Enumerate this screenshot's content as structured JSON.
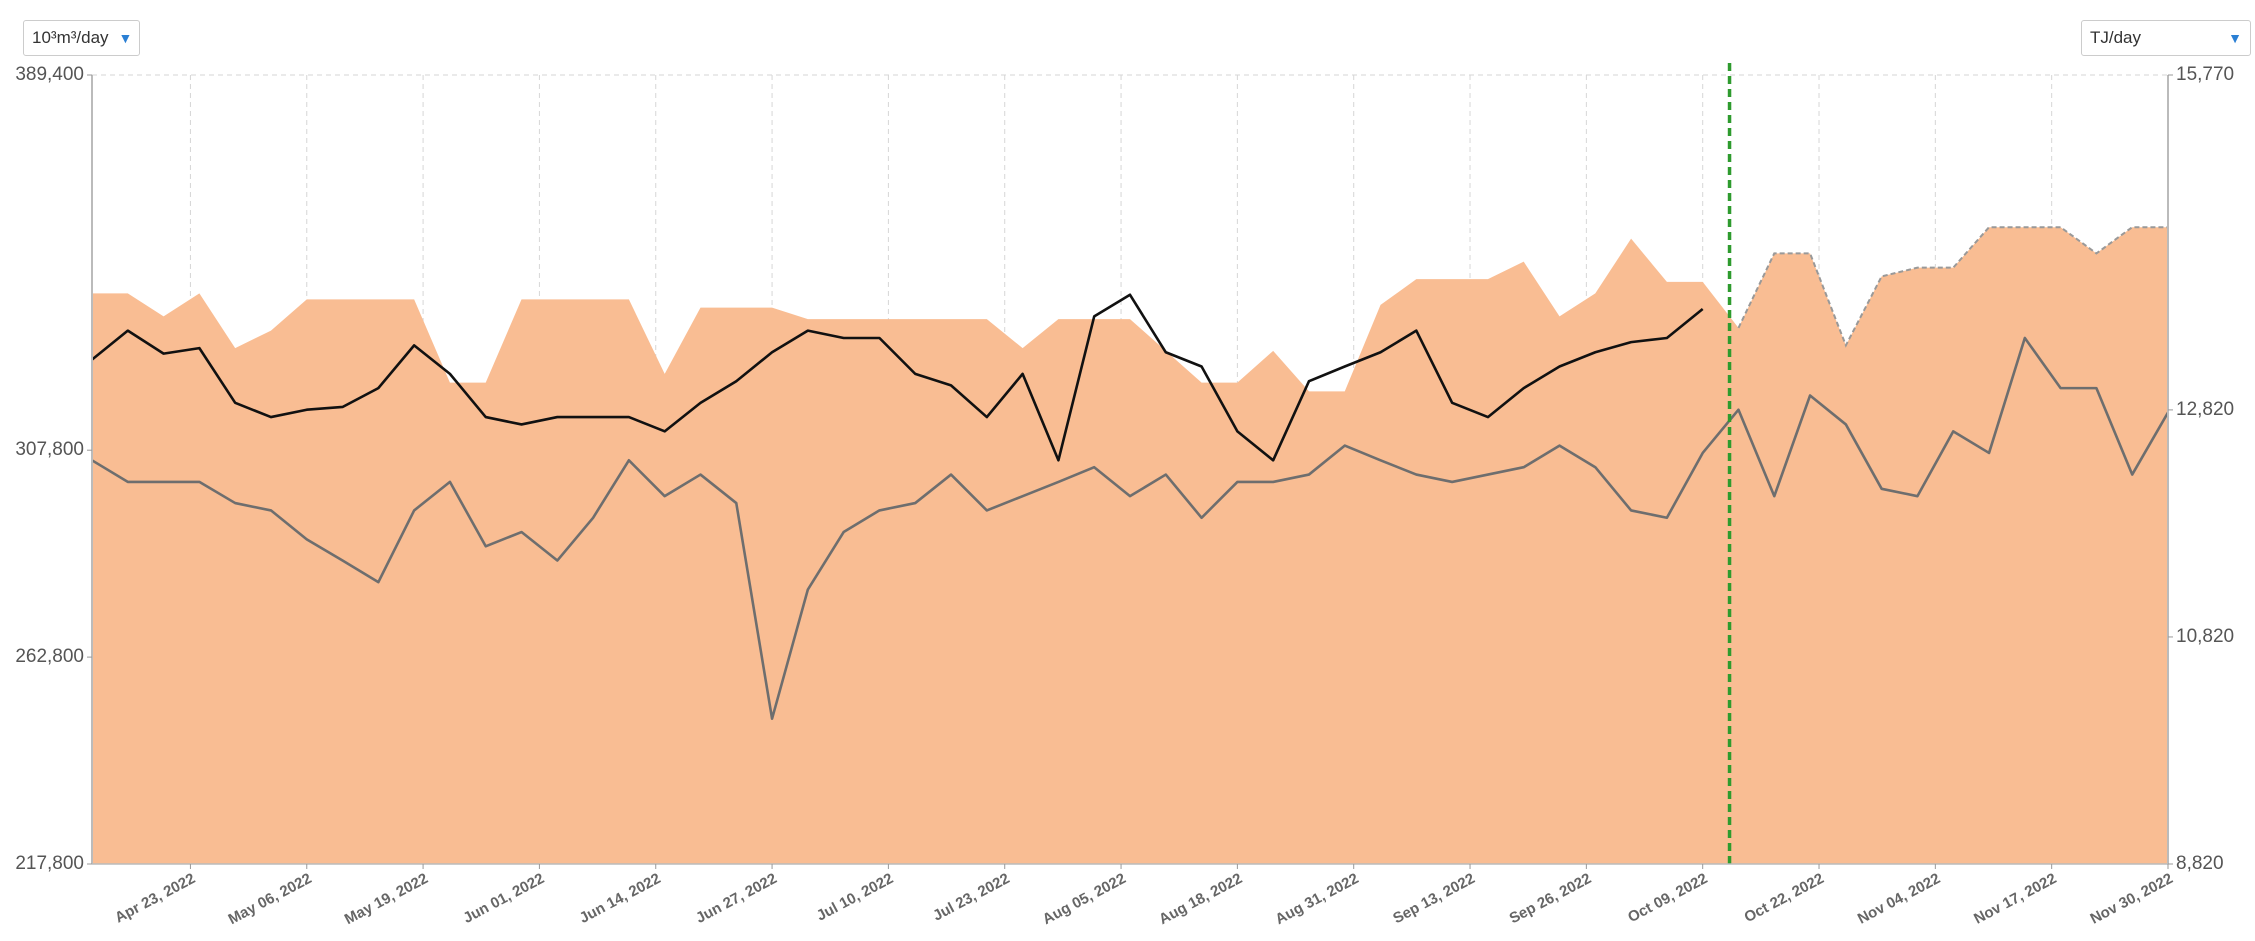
{
  "y_unit_selector": "10³m³/day",
  "y2_unit_selector": "TJ/day",
  "chart_data": {
    "type": "area-line",
    "x": [
      "2022-04-12",
      "2022-04-16",
      "2022-04-20",
      "2022-04-24",
      "2022-04-28",
      "2022-05-02",
      "2022-05-06",
      "2022-05-10",
      "2022-05-14",
      "2022-05-18",
      "2022-05-22",
      "2022-05-26",
      "2022-05-30",
      "2022-06-03",
      "2022-06-07",
      "2022-06-11",
      "2022-06-15",
      "2022-06-19",
      "2022-06-23",
      "2022-06-27",
      "2022-07-01",
      "2022-07-05",
      "2022-07-09",
      "2022-07-13",
      "2022-07-17",
      "2022-07-21",
      "2022-07-25",
      "2022-07-29",
      "2022-08-02",
      "2022-08-06",
      "2022-08-10",
      "2022-08-14",
      "2022-08-18",
      "2022-08-22",
      "2022-08-26",
      "2022-08-30",
      "2022-09-03",
      "2022-09-07",
      "2022-09-11",
      "2022-09-15",
      "2022-09-19",
      "2022-09-23",
      "2022-09-27",
      "2022-10-01",
      "2022-10-05",
      "2022-10-09",
      "2022-10-13",
      "2022-10-17",
      "2022-10-21",
      "2022-10-25",
      "2022-10-29",
      "2022-11-02",
      "2022-11-06",
      "2022-11-10",
      "2022-11-14",
      "2022-11-18",
      "2022-11-22",
      "2022-11-26",
      "2022-11-30"
    ],
    "series": [
      {
        "kind": "area",
        "color": "#f9bd93",
        "values": [
          341900,
          341900,
          336900,
          341900,
          330000,
          333800,
          340600,
          340600,
          340600,
          340600,
          322500,
          322500,
          340600,
          340600,
          340600,
          340600,
          324400,
          338800,
          338800,
          338800,
          336300,
          336300,
          336300,
          336300,
          336300,
          336300,
          330000,
          336300,
          336300,
          336300,
          329400,
          322500,
          322500,
          329400,
          320600,
          320600,
          339400,
          345000,
          345000,
          345000,
          348800,
          336900,
          341900,
          353800,
          344400,
          344400,
          334400,
          350600,
          350600,
          330600,
          345600,
          347500,
          347500,
          356300,
          356300,
          356300,
          350600,
          356300,
          356300
        ]
      },
      {
        "kind": "line",
        "color": "#111111",
        "values": [
          327500,
          333800,
          328800,
          330000,
          318100,
          315000,
          316600,
          317200,
          321300,
          330600,
          324400,
          315000,
          313400,
          315000,
          315000,
          315000,
          311900,
          318100,
          322800,
          329100,
          333800,
          332200,
          332200,
          324400,
          321900,
          315000,
          324400,
          305600,
          336900,
          341600,
          329100,
          326000,
          311900,
          305600,
          322800,
          326000,
          329100,
          333800,
          318100,
          315000,
          321300,
          326000,
          329100,
          331300,
          332200,
          338500,
          null,
          null,
          null,
          null,
          null,
          null,
          null,
          null,
          null,
          null,
          null,
          null,
          null
        ]
      },
      {
        "kind": "line",
        "color": "#6e6e6e",
        "values": [
          305600,
          300900,
          300900,
          300900,
          296300,
          294700,
          288400,
          283800,
          279100,
          294700,
          300900,
          286900,
          290000,
          283800,
          293100,
          305600,
          297800,
          302500,
          296300,
          249400,
          277500,
          290000,
          294700,
          296300,
          302500,
          294700,
          297800,
          300900,
          304100,
          297800,
          302500,
          293100,
          300900,
          300900,
          302500,
          308800,
          305600,
          302500,
          300900,
          302500,
          304100,
          308800,
          304100,
          294700,
          293100,
          307200,
          316600,
          297800,
          319700,
          313400,
          299400,
          297800,
          311900,
          307200,
          332200,
          321300,
          321300,
          302500,
          316000
        ]
      }
    ],
    "xlim": [
      "2022-04-12",
      "2022-11-30"
    ],
    "xticks": [
      {
        "value": "2022-04-23",
        "label": "Apr 23, 2022"
      },
      {
        "value": "2022-05-06",
        "label": "May 06, 2022"
      },
      {
        "value": "2022-05-19",
        "label": "May 19, 2022"
      },
      {
        "value": "2022-06-01",
        "label": "Jun 01, 2022"
      },
      {
        "value": "2022-06-14",
        "label": "Jun 14, 2022"
      },
      {
        "value": "2022-06-27",
        "label": "Jun 27, 2022"
      },
      {
        "value": "2022-07-10",
        "label": "Jul 10, 2022"
      },
      {
        "value": "2022-07-23",
        "label": "Jul 23, 2022"
      },
      {
        "value": "2022-08-05",
        "label": "Aug 05, 2022"
      },
      {
        "value": "2022-08-18",
        "label": "Aug 18, 2022"
      },
      {
        "value": "2022-08-31",
        "label": "Aug 31, 2022"
      },
      {
        "value": "2022-09-13",
        "label": "Sep 13, 2022"
      },
      {
        "value": "2022-09-26",
        "label": "Sep 26, 2022"
      },
      {
        "value": "2022-10-09",
        "label": "Oct 09, 2022"
      },
      {
        "value": "2022-10-22",
        "label": "Oct 22, 2022"
      },
      {
        "value": "2022-11-04",
        "label": "Nov 04, 2022"
      },
      {
        "value": "2022-11-17",
        "label": "Nov 17, 2022"
      },
      {
        "value": "2022-11-30",
        "label": "Nov 30, 2022"
      }
    ],
    "ylim": [
      217800,
      389400
    ],
    "yticks": [
      {
        "value": 217800,
        "label": "217,800"
      },
      {
        "value": 262800,
        "label": "262,800"
      },
      {
        "value": 307800,
        "label": "307,800"
      },
      {
        "value": 389400,
        "label": "389,400"
      }
    ],
    "y2lim": [
      8820,
      15770
    ],
    "y2ticks": [
      {
        "value": 8820,
        "label": "8,820"
      },
      {
        "value": 10820,
        "label": "10,820"
      },
      {
        "value": 12820,
        "label": "12,820"
      },
      {
        "value": 15770,
        "label": "15,770"
      }
    ],
    "grid": true,
    "marker": {
      "x": "2022-10-12",
      "color": "#2e9b2e"
    }
  }
}
